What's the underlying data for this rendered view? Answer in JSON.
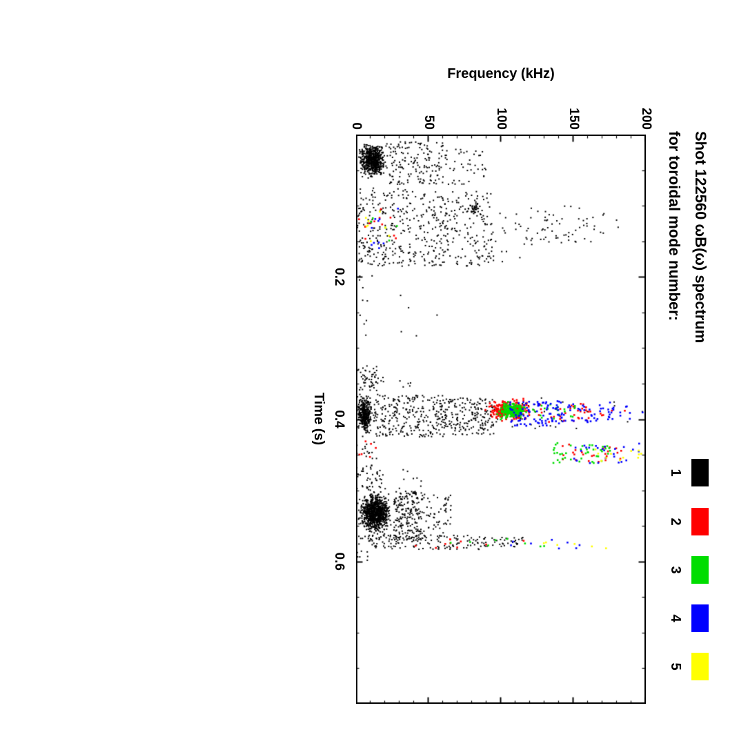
{
  "page": {
    "background": "#ffffff"
  },
  "chart_data": {
    "type": "scatter",
    "title_line1": "Shot 122560 ωB(ω) spectrum",
    "title_line2": "for toroidal mode number:",
    "xlabel": "Time (s)",
    "ylabel": "Frequency (kHz)",
    "xlim": [
      0,
      0.8
    ],
    "ylim": [
      0,
      200
    ],
    "x_ticks": [
      {
        "value": 0.2,
        "label": "0.2"
      },
      {
        "value": 0.4,
        "label": "0.4"
      },
      {
        "value": 0.6,
        "label": "0.6"
      }
    ],
    "x_minor_step": 0.05,
    "y_ticks": [
      {
        "value": 0,
        "label": "0"
      },
      {
        "value": 50,
        "label": "50"
      },
      {
        "value": 100,
        "label": "100"
      },
      {
        "value": 150,
        "label": "150"
      },
      {
        "value": 200,
        "label": "200"
      }
    ],
    "y_minor_step": 10,
    "grid": false,
    "legend_position": "top-right",
    "orientation": "whole chart rendered rotated 90 degrees clockwise",
    "legend": [
      {
        "label": "1",
        "color": "#000000"
      },
      {
        "label": "2",
        "color": "#ff0000"
      },
      {
        "label": "3",
        "color": "#00dd00"
      },
      {
        "label": "4",
        "color": "#0000ff"
      },
      {
        "label": "5",
        "color": "#ffff00"
      }
    ],
    "clusters": [
      {
        "m": 1,
        "n": 650,
        "t": [
          0.008,
          0.065
        ],
        "f": [
          0,
          22
        ],
        "d": "g"
      },
      {
        "m": 1,
        "n": 160,
        "t": [
          0.01,
          0.07
        ],
        "f": [
          20,
          60
        ],
        "d": "u"
      },
      {
        "m": 1,
        "n": 45,
        "t": [
          0.02,
          0.07
        ],
        "f": [
          60,
          90
        ],
        "d": "u"
      },
      {
        "m": 1,
        "n": 230,
        "t": [
          0.075,
          0.185
        ],
        "f": [
          0,
          40
        ],
        "d": "u"
      },
      {
        "m": 1,
        "n": 270,
        "t": [
          0.08,
          0.185
        ],
        "f": [
          40,
          95
        ],
        "d": "u"
      },
      {
        "m": 1,
        "n": 30,
        "t": [
          0.095,
          0.115
        ],
        "f": [
          75,
          90
        ],
        "d": "g"
      },
      {
        "m": 1,
        "n": 60,
        "t": [
          0.1,
          0.155
        ],
        "f": [
          115,
          165
        ],
        "d": "u"
      },
      {
        "m": 1,
        "n": 15,
        "t": [
          0.1,
          0.18
        ],
        "f": [
          95,
          115
        ],
        "d": "u"
      },
      {
        "m": 1,
        "n": 6,
        "t": [
          0.11,
          0.15
        ],
        "f": [
          165,
          185
        ],
        "d": "u"
      },
      {
        "m": 2,
        "n": 12,
        "t": [
          0.1,
          0.16
        ],
        "f": [
          2,
          28
        ],
        "d": "u"
      },
      {
        "m": 4,
        "n": 10,
        "t": [
          0.1,
          0.16
        ],
        "f": [
          5,
          30
        ],
        "d": "u"
      },
      {
        "m": 5,
        "n": 8,
        "t": [
          0.105,
          0.15
        ],
        "f": [
          5,
          25
        ],
        "d": "u"
      },
      {
        "m": 3,
        "n": 5,
        "t": [
          0.11,
          0.15
        ],
        "f": [
          10,
          30
        ],
        "d": "u"
      },
      {
        "m": 1,
        "n": 10,
        "t": [
          0.19,
          0.3
        ],
        "f": [
          0,
          12
        ],
        "d": "u"
      },
      {
        "m": 1,
        "n": 5,
        "t": [
          0.21,
          0.3
        ],
        "f": [
          25,
          60
        ],
        "d": "u"
      },
      {
        "m": 1,
        "n": 55,
        "t": [
          0.325,
          0.36
        ],
        "f": [
          0,
          16
        ],
        "d": "u"
      },
      {
        "m": 1,
        "n": 8,
        "t": [
          0.33,
          0.355
        ],
        "f": [
          16,
          38
        ],
        "d": "u"
      },
      {
        "m": 1,
        "n": 380,
        "t": [
          0.36,
          0.428
        ],
        "f": [
          0,
          12
        ],
        "d": "g"
      },
      {
        "m": 1,
        "n": 260,
        "t": [
          0.365,
          0.425
        ],
        "f": [
          12,
          60
        ],
        "d": "u"
      },
      {
        "m": 1,
        "n": 190,
        "t": [
          0.37,
          0.422
        ],
        "f": [
          60,
          95
        ],
        "d": "u"
      },
      {
        "m": 1,
        "n": 30,
        "t": [
          0.37,
          0.42
        ],
        "f": [
          95,
          130
        ],
        "d": "u"
      },
      {
        "m": 2,
        "n": 270,
        "t": [
          0.368,
          0.406
        ],
        "f": [
          85,
          125
        ],
        "d": "g"
      },
      {
        "m": 3,
        "n": 190,
        "t": [
          0.374,
          0.402
        ],
        "f": [
          95,
          120
        ],
        "d": "g"
      },
      {
        "m": 4,
        "n": 90,
        "t": [
          0.374,
          0.41
        ],
        "f": [
          105,
          142
        ],
        "d": "u"
      },
      {
        "m": 4,
        "n": 40,
        "t": [
          0.375,
          0.405
        ],
        "f": [
          142,
          176
        ],
        "d": "u"
      },
      {
        "m": 2,
        "n": 30,
        "t": [
          0.375,
          0.405
        ],
        "f": [
          125,
          160
        ],
        "d": "u"
      },
      {
        "m": 3,
        "n": 20,
        "t": [
          0.378,
          0.4
        ],
        "f": [
          120,
          152
        ],
        "d": "u"
      },
      {
        "m": 4,
        "n": 12,
        "t": [
          0.38,
          0.4
        ],
        "f": [
          176,
          200
        ],
        "d": "u"
      },
      {
        "m": 2,
        "n": 8,
        "t": [
          0.38,
          0.4
        ],
        "f": [
          160,
          186
        ],
        "d": "u"
      },
      {
        "m": 1,
        "n": 12,
        "t": [
          0.375,
          0.415
        ],
        "f": [
          130,
          200
        ],
        "d": "u"
      },
      {
        "m": 3,
        "n": 40,
        "t": [
          0.433,
          0.462
        ],
        "f": [
          134,
          176
        ],
        "d": "u"
      },
      {
        "m": 2,
        "n": 26,
        "t": [
          0.433,
          0.46
        ],
        "f": [
          140,
          186
        ],
        "d": "u"
      },
      {
        "m": 4,
        "n": 26,
        "t": [
          0.434,
          0.463
        ],
        "f": [
          150,
          196
        ],
        "d": "u"
      },
      {
        "m": 5,
        "n": 12,
        "t": [
          0.44,
          0.462
        ],
        "f": [
          164,
          200
        ],
        "d": "u"
      },
      {
        "m": 1,
        "n": 16,
        "t": [
          0.43,
          0.465
        ],
        "f": [
          0,
          16
        ],
        "d": "u"
      },
      {
        "m": 2,
        "n": 6,
        "t": [
          0.43,
          0.455
        ],
        "f": [
          2,
          22
        ],
        "d": "u"
      },
      {
        "m": 1,
        "n": 45,
        "t": [
          0.465,
          0.5
        ],
        "f": [
          0,
          18
        ],
        "d": "u"
      },
      {
        "m": 1,
        "n": 10,
        "t": [
          0.47,
          0.5
        ],
        "f": [
          18,
          45
        ],
        "d": "u"
      },
      {
        "m": 1,
        "n": 950,
        "t": [
          0.498,
          0.565
        ],
        "f": [
          0,
          26
        ],
        "d": "g"
      },
      {
        "m": 1,
        "n": 220,
        "t": [
          0.5,
          0.57
        ],
        "f": [
          26,
          46
        ],
        "d": "u"
      },
      {
        "m": 1,
        "n": 60,
        "t": [
          0.505,
          0.565
        ],
        "f": [
          46,
          66
        ],
        "d": "u"
      },
      {
        "m": 1,
        "n": 130,
        "t": [
          0.563,
          0.583
        ],
        "f": [
          0,
          86
        ],
        "d": "u"
      },
      {
        "m": 1,
        "n": 40,
        "t": [
          0.566,
          0.58
        ],
        "f": [
          86,
          116
        ],
        "d": "u"
      },
      {
        "m": 2,
        "n": 10,
        "t": [
          0.568,
          0.582
        ],
        "f": [
          20,
          122
        ],
        "d": "u"
      },
      {
        "m": 3,
        "n": 8,
        "t": [
          0.568,
          0.582
        ],
        "f": [
          60,
          142
        ],
        "d": "u"
      },
      {
        "m": 4,
        "n": 8,
        "t": [
          0.568,
          0.582
        ],
        "f": [
          100,
          172
        ],
        "d": "u"
      },
      {
        "m": 5,
        "n": 6,
        "t": [
          0.57,
          0.582
        ],
        "f": [
          122,
          192
        ],
        "d": "u"
      },
      {
        "m": 1,
        "n": 8,
        "t": [
          0.585,
          0.6
        ],
        "f": [
          0,
          10
        ],
        "d": "u"
      }
    ]
  }
}
